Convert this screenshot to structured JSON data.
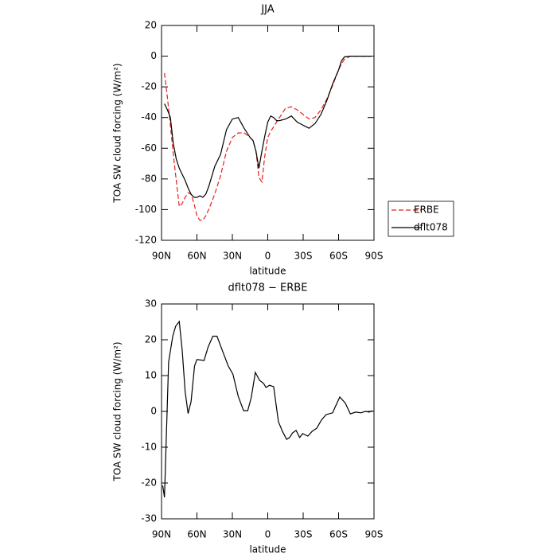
{
  "chart_data": [
    {
      "type": "line",
      "title": "JJA",
      "xlabel": "latitude",
      "ylabel": "TOA SW cloud forcing (W/m²)",
      "x": [
        87.5,
        85,
        82.5,
        80,
        77.5,
        75,
        72.5,
        70,
        67.5,
        65,
        62.5,
        60,
        57.5,
        55,
        52.5,
        50,
        45,
        40,
        35,
        30,
        25,
        20,
        15,
        12.5,
        10,
        7.5,
        5,
        2.5,
        0,
        -2.5,
        -5,
        -7.5,
        -10,
        -15,
        -20,
        -25,
        -30,
        -35,
        -40,
        -45,
        -50,
        -55,
        -60,
        -62.5,
        -65,
        -70,
        -75,
        -80,
        -85,
        -87.5
      ],
      "series": [
        {
          "name": "ERBE",
          "color": "#e8201c",
          "dash": true,
          "values": [
            -11,
            -27,
            -45,
            -64,
            -81,
            -98,
            -96,
            -92,
            -89,
            -90,
            -96,
            -104,
            -107,
            -107,
            -104,
            -100,
            -90,
            -78,
            -62,
            -53,
            -50,
            -50,
            -53,
            -55,
            -62,
            -79,
            -82,
            -65,
            -53,
            -49,
            -46,
            -43,
            -40,
            -34,
            -33,
            -35,
            -38,
            -41,
            -40,
            -35,
            -28,
            -19,
            -9,
            -5,
            -2,
            0,
            0,
            0,
            0,
            0
          ]
        },
        {
          "name": "dflt078",
          "color": "#000000",
          "dash": false,
          "values": [
            -31,
            -35,
            -40,
            -57,
            -67,
            -73,
            -77,
            -81,
            -86,
            -90,
            -92,
            -92,
            -91,
            -92,
            -90,
            -85,
            -72,
            -64,
            -48,
            -41,
            -40,
            -47,
            -53,
            -55,
            -62,
            -73,
            -62,
            -52,
            -43,
            -39,
            -40,
            -42,
            -42,
            -41,
            -39,
            -43,
            -45,
            -47,
            -44,
            -38,
            -29,
            -18,
            -9,
            -3,
            -0.5,
            0,
            0,
            0,
            0,
            0
          ]
        }
      ],
      "xlim": [
        90,
        -90
      ],
      "xticks": [
        {
          "value": 90,
          "label": "90N"
        },
        {
          "value": 60,
          "label": "60N"
        },
        {
          "value": 30,
          "label": "30N"
        },
        0,
        {
          "value": -30,
          "label": "30S"
        },
        {
          "value": -60,
          "label": "60S"
        },
        {
          "value": -90,
          "label": "90S"
        }
      ],
      "ylim": [
        -120,
        20
      ],
      "yticks": [
        -120,
        -100,
        -80,
        -60,
        -40,
        -20,
        0,
        20
      ],
      "legend": "right"
    },
    {
      "type": "line",
      "title": "dflt078 − ERBE",
      "xlabel": "latitude",
      "ylabel": "TOA SW cloud forcing (W/m²)",
      "x": [
        89,
        87.5,
        84,
        80.5,
        78,
        75,
        72.5,
        70,
        67.5,
        65,
        62,
        60,
        54,
        50.5,
        46.5,
        43,
        39,
        33.5,
        29.5,
        25,
        20.5,
        17,
        14,
        10.5,
        7,
        3.5,
        1.5,
        -1.5,
        -5,
        -9,
        -12.5,
        -16,
        -18.5,
        -21,
        -24,
        -27,
        -29.5,
        -34,
        -37.5,
        -41.5,
        -45.5,
        -49.5,
        -55,
        -57,
        -61,
        -65.5,
        -70,
        -74.5,
        -79,
        -82.5,
        -86,
        -88.5
      ],
      "values": [
        -20.7,
        -24,
        13.8,
        21,
        23.8,
        25.1,
        17,
        5.5,
        -0.6,
        2.7,
        12.7,
        14.5,
        14.2,
        18,
        21,
        21,
        17.5,
        12.7,
        10.4,
        4.2,
        0.2,
        0.2,
        3.8,
        10.9,
        8.7,
        7.8,
        6.7,
        7.3,
        6.9,
        -2.9,
        -5.6,
        -7.8,
        -7.3,
        -6,
        -5.3,
        -7.3,
        -6.2,
        -6.9,
        -5.6,
        -4.7,
        -2.4,
        -0.9,
        -0.4,
        1.1,
        4,
        2.4,
        -0.7,
        -0.2,
        -0.4,
        0,
        -0.2,
        0.2
      ],
      "color": "#000000",
      "xlim": [
        90,
        -90
      ],
      "xticks": [
        {
          "value": 90,
          "label": "90N"
        },
        {
          "value": 60,
          "label": "60N"
        },
        {
          "value": 30,
          "label": "30N"
        },
        0,
        {
          "value": -30,
          "label": "30S"
        },
        {
          "value": -60,
          "label": "60S"
        },
        {
          "value": -90,
          "label": "90S"
        }
      ],
      "ylim": [
        -30,
        30
      ],
      "yticks": [
        -30,
        -20,
        -10,
        0,
        10,
        20,
        30
      ]
    }
  ]
}
